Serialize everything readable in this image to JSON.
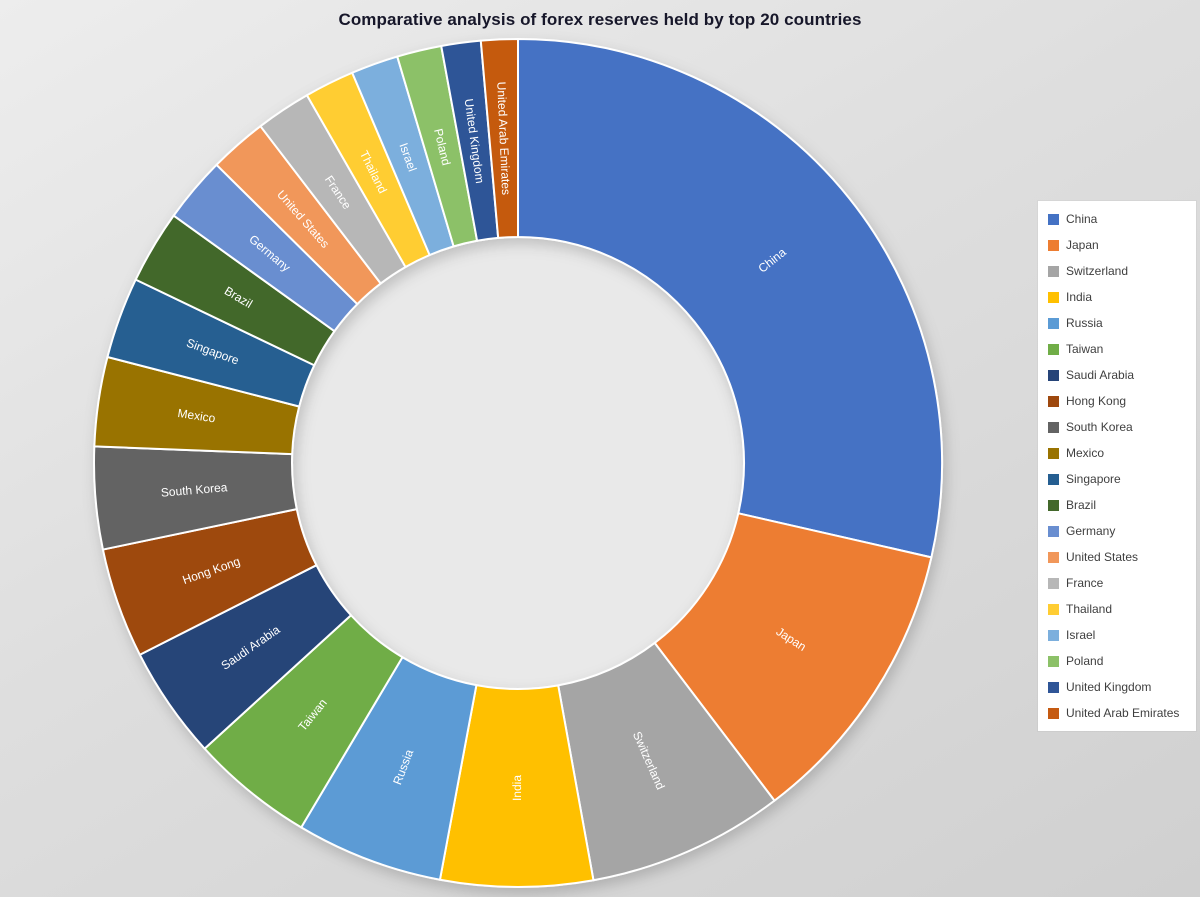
{
  "page": {
    "background_top": "#ededed",
    "background_bottom": "#d0d0d0",
    "hole_color": "#e9e9e9"
  },
  "chart_data": {
    "type": "pie",
    "subtype": "donut",
    "title": "Comparative analysis of forex reserves held by top 20 countries",
    "categories": [
      "China",
      "Japan",
      "Switzerland",
      "India",
      "Russia",
      "Taiwan",
      "Saudi Arabia",
      "Hong Kong",
      "South Korea",
      "Mexico",
      "Singapore",
      "Brazil",
      "Germany",
      "United States",
      "France",
      "Thailand",
      "Israel",
      "Poland",
      "United Kingdom",
      "United Arab Emirates"
    ],
    "values": [
      28.6,
      11.1,
      7.5,
      5.8,
      5.6,
      4.7,
      4.3,
      4.2,
      3.9,
      3.4,
      3.1,
      2.8,
      2.5,
      2.2,
      2.1,
      1.9,
      1.8,
      1.7,
      1.5,
      1.4
    ],
    "value_unit": "percent share of total (estimated from slice angles; no numeric labels shown)",
    "colors": [
      "#4472C4",
      "#ED7D31",
      "#A5A5A5",
      "#FFC000",
      "#5B9BD5",
      "#70AD47",
      "#264478",
      "#9E480E",
      "#636363",
      "#997300",
      "#255E91",
      "#43682B",
      "#698ED0",
      "#F1975A",
      "#B7B7B7",
      "#FFCD33",
      "#7CAFDD",
      "#8CC168",
      "#2F5597",
      "#C55A11"
    ],
    "legend_position": "right",
    "labels_on_slices": true,
    "label_text_color": "#ffffff",
    "slice_separator_color": "#ffffff",
    "donut_hole_ratio": 0.53,
    "start_angle_deg": 0,
    "direction": "clockwise"
  }
}
